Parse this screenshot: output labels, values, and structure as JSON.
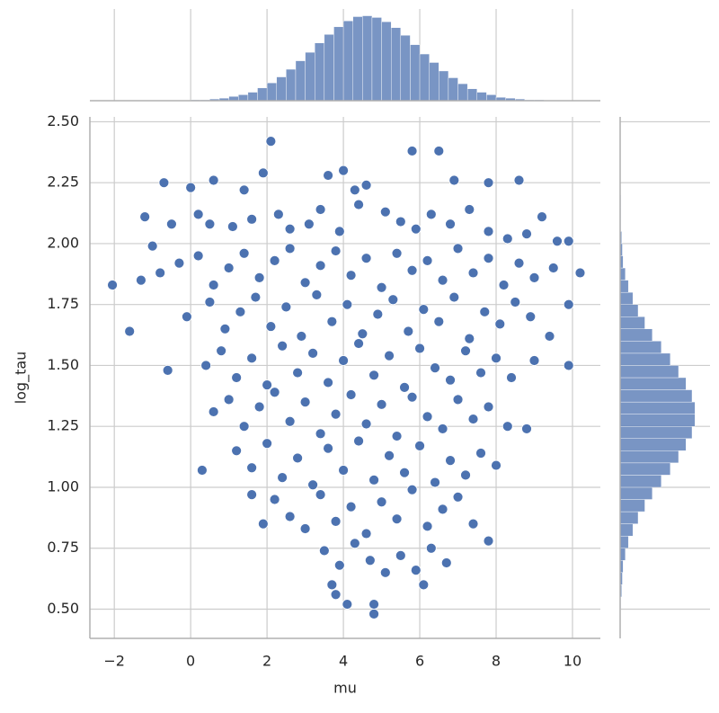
{
  "chart_data": {
    "type": "scatter",
    "xlabel": "mu",
    "ylabel": "log_tau",
    "color": "#4c72b0",
    "grid": true,
    "xlim": [
      -2.64,
      10.73
    ],
    "ylim": [
      0.38,
      2.52
    ],
    "xticks": [
      {
        "value": -2,
        "label": "−2"
      },
      0,
      2,
      4,
      6,
      8,
      10
    ],
    "yticks": [
      {
        "value": 0.5,
        "label": "0.50"
      },
      {
        "value": 0.75,
        "label": "0.75"
      },
      {
        "value": 1.0,
        "label": "1.00"
      },
      {
        "value": 1.25,
        "label": "1.25"
      },
      {
        "value": 1.5,
        "label": "1.50"
      },
      {
        "value": 1.75,
        "label": "1.75"
      },
      {
        "value": 2.0,
        "label": "2.00"
      },
      {
        "value": 2.25,
        "label": "2.25"
      },
      {
        "value": 2.5,
        "label": "2.50"
      }
    ],
    "x": [
      -2.05,
      -1.6,
      2.1,
      5.8,
      6.5,
      4.8,
      4.8,
      4.1,
      3.7,
      3.8,
      10.2,
      9.9,
      9.9,
      9.9,
      9.5,
      0.3,
      1.6,
      1.9,
      6.1,
      7.8,
      -0.7,
      0.0,
      0.6,
      1.4,
      1.9,
      3.6,
      4.0,
      4.3,
      4.6,
      7.8,
      8.6,
      6.9,
      -1.2,
      -1.0,
      -0.5,
      0.2,
      0.5,
      1.1,
      1.6,
      2.3,
      2.6,
      3.1,
      3.4,
      3.9,
      4.4,
      5.1,
      5.5,
      5.9,
      6.3,
      6.8,
      7.3,
      7.8,
      8.3,
      8.8,
      9.2,
      9.6,
      -1.3,
      -0.8,
      -0.3,
      0.2,
      0.6,
      1.0,
      1.4,
      1.8,
      2.2,
      2.6,
      3.0,
      3.4,
      3.8,
      4.2,
      4.6,
      5.0,
      5.4,
      5.8,
      6.2,
      6.6,
      7.0,
      7.4,
      7.8,
      8.2,
      8.6,
      9.0,
      -0.1,
      0.5,
      0.9,
      1.3,
      1.7,
      2.1,
      2.5,
      2.9,
      3.3,
      3.7,
      4.1,
      4.5,
      4.9,
      5.3,
      5.7,
      6.1,
      6.5,
      6.9,
      7.3,
      7.7,
      8.1,
      8.5,
      8.9,
      9.4,
      -0.6,
      0.4,
      0.8,
      1.2,
      1.6,
      2.0,
      2.4,
      2.8,
      3.2,
      3.6,
      4.0,
      4.4,
      4.8,
      5.2,
      5.6,
      6.0,
      6.4,
      6.8,
      7.2,
      7.6,
      8.0,
      8.4,
      9.0,
      0.6,
      1.0,
      1.4,
      1.8,
      2.2,
      2.6,
      3.0,
      3.4,
      3.8,
      4.2,
      4.6,
      5.0,
      5.4,
      5.8,
      6.2,
      6.6,
      7.0,
      7.4,
      7.8,
      8.3,
      8.8,
      1.2,
      1.6,
      2.0,
      2.4,
      2.8,
      3.2,
      3.6,
      4.0,
      4.4,
      4.8,
      5.2,
      5.6,
      6.0,
      6.4,
      6.8,
      7.2,
      7.6,
      8.0,
      2.2,
      2.6,
      3.0,
      3.4,
      3.8,
      4.2,
      4.6,
      5.0,
      5.4,
      5.8,
      6.2,
      6.6,
      7.0,
      7.4,
      3.5,
      3.9,
      4.3,
      4.7,
      5.1,
      5.5,
      5.9,
      6.3,
      6.7
    ],
    "values": [
      1.83,
      1.64,
      2.42,
      2.38,
      2.38,
      0.48,
      0.52,
      0.52,
      0.6,
      0.56,
      1.88,
      1.5,
      2.01,
      1.75,
      1.9,
      1.07,
      0.97,
      0.85,
      0.6,
      0.78,
      2.25,
      2.23,
      2.26,
      2.22,
      2.29,
      2.28,
      2.3,
      2.22,
      2.24,
      2.25,
      2.26,
      2.26,
      2.11,
      1.99,
      2.08,
      2.12,
      2.08,
      2.07,
      2.1,
      2.12,
      2.06,
      2.08,
      2.14,
      2.05,
      2.16,
      2.13,
      2.09,
      2.06,
      2.12,
      2.08,
      2.14,
      2.05,
      2.02,
      2.04,
      2.11,
      2.01,
      1.85,
      1.88,
      1.92,
      1.95,
      1.83,
      1.9,
      1.96,
      1.86,
      1.93,
      1.98,
      1.84,
      1.91,
      1.97,
      1.87,
      1.94,
      1.82,
      1.96,
      1.89,
      1.93,
      1.85,
      1.98,
      1.88,
      1.94,
      1.83,
      1.92,
      1.86,
      1.7,
      1.76,
      1.65,
      1.72,
      1.78,
      1.66,
      1.74,
      1.62,
      1.79,
      1.68,
      1.75,
      1.63,
      1.71,
      1.77,
      1.64,
      1.73,
      1.68,
      1.78,
      1.61,
      1.72,
      1.67,
      1.76,
      1.7,
      1.62,
      1.48,
      1.5,
      1.56,
      1.45,
      1.53,
      1.42,
      1.58,
      1.47,
      1.55,
      1.43,
      1.52,
      1.59,
      1.46,
      1.54,
      1.41,
      1.57,
      1.49,
      1.44,
      1.56,
      1.47,
      1.53,
      1.45,
      1.52,
      1.31,
      1.36,
      1.25,
      1.33,
      1.39,
      1.27,
      1.35,
      1.22,
      1.3,
      1.38,
      1.26,
      1.34,
      1.21,
      1.37,
      1.29,
      1.24,
      1.36,
      1.28,
      1.33,
      1.25,
      1.24,
      1.15,
      1.08,
      1.18,
      1.04,
      1.12,
      1.01,
      1.16,
      1.07,
      1.19,
      1.03,
      1.13,
      1.06,
      1.17,
      1.02,
      1.11,
      1.05,
      1.14,
      1.09,
      0.95,
      0.88,
      0.83,
      0.97,
      0.86,
      0.92,
      0.81,
      0.94,
      0.87,
      0.99,
      0.84,
      0.91,
      0.96,
      0.85,
      0.74,
      0.68,
      0.77,
      0.7,
      0.65,
      0.72,
      0.66,
      0.75,
      0.69
    ],
    "marginal_x": {
      "type": "histogram",
      "count_lim": [
        0,
        108
      ],
      "bins": [
        -2,
        -1.75,
        -1.5,
        -1.25,
        -1,
        -0.75,
        -0.5,
        -0.25,
        0,
        0.25,
        0.5,
        0.75,
        1,
        1.25,
        1.5,
        1.75,
        2,
        2.25,
        2.5,
        2.75,
        3,
        3.25,
        3.5,
        3.75,
        4,
        4.25,
        4.5,
        4.75,
        5,
        5.25,
        5.5,
        5.75,
        6,
        6.25,
        6.5,
        6.75,
        7,
        7.25,
        7.5,
        7.75,
        8,
        8.25,
        8.5,
        8.75,
        9,
        9.25,
        9.5,
        9.75,
        10,
        10.25
      ],
      "counts": [
        0,
        0,
        0,
        0,
        0,
        0,
        0,
        0,
        1,
        1,
        2,
        3,
        5,
        7,
        10,
        15,
        21,
        28,
        37,
        47,
        57,
        68,
        78,
        87,
        94,
        99,
        100,
        98,
        93,
        86,
        77,
        66,
        55,
        45,
        35,
        27,
        20,
        14,
        10,
        7,
        4,
        3,
        2,
        1,
        1,
        0,
        0,
        0,
        0
      ]
    },
    "marginal_y": {
      "type": "histogram",
      "count_lim": [
        0,
        120
      ],
      "bins": [
        0.45,
        0.5,
        0.55,
        0.6,
        0.65,
        0.7,
        0.75,
        0.8,
        0.85,
        0.9,
        0.95,
        1,
        1.05,
        1.1,
        1.15,
        1.2,
        1.25,
        1.3,
        1.35,
        1.4,
        1.45,
        1.5,
        1.55,
        1.6,
        1.65,
        1.7,
        1.75,
        1.8,
        1.85,
        1.9,
        1.95,
        2,
        2.05,
        2.1,
        2.15,
        2.2,
        2.25,
        2.3,
        2.35,
        2.4,
        2.45
      ],
      "counts": [
        0,
        1,
        2,
        3,
        4,
        7,
        11,
        17,
        24,
        33,
        43,
        55,
        67,
        78,
        88,
        96,
        100,
        100,
        96,
        88,
        78,
        67,
        55,
        43,
        33,
        24,
        17,
        11,
        7,
        4,
        3,
        2,
        1,
        1,
        1,
        0,
        0,
        0,
        0,
        0
      ]
    }
  }
}
